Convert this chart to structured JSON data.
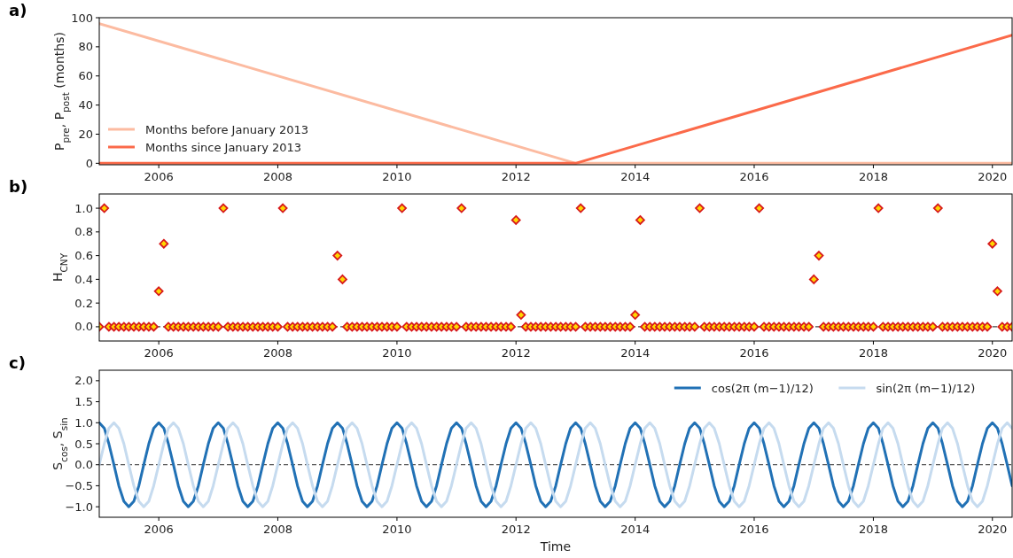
{
  "chart_data": [
    {
      "type": "line",
      "title": "a)",
      "ylabel": "P$_{pre}$, P$_{post}$ (months)",
      "xlim": [
        "2005-01",
        "2020-05"
      ],
      "xticks": [
        {
          "value": "2006-01",
          "label": "2006"
        },
        {
          "value": "2008-01",
          "label": "2008"
        },
        {
          "value": "2010-01",
          "label": "2010"
        },
        {
          "value": "2012-01",
          "label": "2012"
        },
        {
          "value": "2014-01",
          "label": "2014"
        },
        {
          "value": "2016-01",
          "label": "2016"
        },
        {
          "value": "2018-01",
          "label": "2018"
        },
        {
          "value": "2020-01",
          "label": "2020"
        }
      ],
      "ylim": [
        -1,
        100
      ],
      "yticks": [
        0,
        20,
        40,
        60,
        80,
        100
      ],
      "legend": "bottom left",
      "series": [
        {
          "name": "Months before January 2013",
          "color": "#fcbba1",
          "x": [
            "2005-01",
            "2013-01",
            "2020-05"
          ],
          "values": [
            96,
            0,
            0
          ]
        },
        {
          "name": "Months since January 2013",
          "color": "#fb6a4a",
          "x": [
            "2005-01",
            "2013-01",
            "2020-05"
          ],
          "values": [
            0,
            0,
            88
          ]
        }
      ]
    },
    {
      "type": "scatter",
      "title": "b)",
      "ylabel": "H$_{CNY}$",
      "marker": "diamond",
      "xlim": [
        "2005-01",
        "2020-05"
      ],
      "xticks": [
        {
          "value": "2006-01",
          "label": "2006"
        },
        {
          "value": "2008-01",
          "label": "2008"
        },
        {
          "value": "2010-01",
          "label": "2010"
        },
        {
          "value": "2012-01",
          "label": "2012"
        },
        {
          "value": "2014-01",
          "label": "2014"
        },
        {
          "value": "2016-01",
          "label": "2016"
        },
        {
          "value": "2018-01",
          "label": "2018"
        },
        {
          "value": "2020-01",
          "label": "2020"
        }
      ],
      "ylim": [
        -0.12,
        1.12
      ],
      "yticks": [
        {
          "value": 0,
          "label": "0.0"
        },
        {
          "value": 0.2,
          "label": "0.2"
        },
        {
          "value": 0.4,
          "label": "0.4"
        },
        {
          "value": 0.6,
          "label": "0.6"
        },
        {
          "value": 0.8,
          "label": "0.8"
        },
        {
          "value": 1,
          "label": "1.0"
        }
      ],
      "ref_lines": [
        {
          "axis": "y",
          "value": 0,
          "color": "#444444",
          "line_style": "dashed"
        }
      ],
      "series": [
        {
          "color": "#ffd700",
          "x": [
            "2005-01",
            "2005-02",
            "2005-03",
            "2005-04",
            "2005-05",
            "2005-06",
            "2005-07",
            "2005-08",
            "2005-09",
            "2005-10",
            "2005-11",
            "2005-12",
            "2006-01",
            "2006-02",
            "2006-03",
            "2006-04",
            "2006-05",
            "2006-06",
            "2006-07",
            "2006-08",
            "2006-09",
            "2006-10",
            "2006-11",
            "2006-12",
            "2007-01",
            "2007-02",
            "2007-03",
            "2007-04",
            "2007-05",
            "2007-06",
            "2007-07",
            "2007-08",
            "2007-09",
            "2007-10",
            "2007-11",
            "2007-12",
            "2008-01",
            "2008-02",
            "2008-03",
            "2008-04",
            "2008-05",
            "2008-06",
            "2008-07",
            "2008-08",
            "2008-09",
            "2008-10",
            "2008-11",
            "2008-12",
            "2009-01",
            "2009-02",
            "2009-03",
            "2009-04",
            "2009-05",
            "2009-06",
            "2009-07",
            "2009-08",
            "2009-09",
            "2009-10",
            "2009-11",
            "2009-12",
            "2010-01",
            "2010-02",
            "2010-03",
            "2010-04",
            "2010-05",
            "2010-06",
            "2010-07",
            "2010-08",
            "2010-09",
            "2010-10",
            "2010-11",
            "2010-12",
            "2011-01",
            "2011-02",
            "2011-03",
            "2011-04",
            "2011-05",
            "2011-06",
            "2011-07",
            "2011-08",
            "2011-09",
            "2011-10",
            "2011-11",
            "2011-12",
            "2012-01",
            "2012-02",
            "2012-03",
            "2012-04",
            "2012-05",
            "2012-06",
            "2012-07",
            "2012-08",
            "2012-09",
            "2012-10",
            "2012-11",
            "2012-12",
            "2013-01",
            "2013-02",
            "2013-03",
            "2013-04",
            "2013-05",
            "2013-06",
            "2013-07",
            "2013-08",
            "2013-09",
            "2013-10",
            "2013-11",
            "2013-12",
            "2014-01",
            "2014-02",
            "2014-03",
            "2014-04",
            "2014-05",
            "2014-06",
            "2014-07",
            "2014-08",
            "2014-09",
            "2014-10",
            "2014-11",
            "2014-12",
            "2015-01",
            "2015-02",
            "2015-03",
            "2015-04",
            "2015-05",
            "2015-06",
            "2015-07",
            "2015-08",
            "2015-09",
            "2015-10",
            "2015-11",
            "2015-12",
            "2016-01",
            "2016-02",
            "2016-03",
            "2016-04",
            "2016-05",
            "2016-06",
            "2016-07",
            "2016-08",
            "2016-09",
            "2016-10",
            "2016-11",
            "2016-12",
            "2017-01",
            "2017-02",
            "2017-03",
            "2017-04",
            "2017-05",
            "2017-06",
            "2017-07",
            "2017-08",
            "2017-09",
            "2017-10",
            "2017-11",
            "2017-12",
            "2018-01",
            "2018-02",
            "2018-03",
            "2018-04",
            "2018-05",
            "2018-06",
            "2018-07",
            "2018-08",
            "2018-09",
            "2018-10",
            "2018-11",
            "2018-12",
            "2019-01",
            "2019-02",
            "2019-03",
            "2019-04",
            "2019-05",
            "2019-06",
            "2019-07",
            "2019-08",
            "2019-09",
            "2019-10",
            "2019-11",
            "2019-12",
            "2020-01",
            "2020-02",
            "2020-03",
            "2020-04",
            "2020-05"
          ],
          "values": [
            0,
            1,
            0,
            0,
            0,
            0,
            0,
            0,
            0,
            0,
            0,
            0,
            0.3,
            0.7,
            0,
            0,
            0,
            0,
            0,
            0,
            0,
            0,
            0,
            0,
            0,
            1,
            0,
            0,
            0,
            0,
            0,
            0,
            0,
            0,
            0,
            0,
            0,
            1,
            0,
            0,
            0,
            0,
            0,
            0,
            0,
            0,
            0,
            0,
            0.6,
            0.4,
            0,
            0,
            0,
            0,
            0,
            0,
            0,
            0,
            0,
            0,
            0,
            1,
            0,
            0,
            0,
            0,
            0,
            0,
            0,
            0,
            0,
            0,
            0,
            1,
            0,
            0,
            0,
            0,
            0,
            0,
            0,
            0,
            0,
            0,
            0.9,
            0.1,
            0,
            0,
            0,
            0,
            0,
            0,
            0,
            0,
            0,
            0,
            0,
            1,
            0,
            0,
            0,
            0,
            0,
            0,
            0,
            0,
            0,
            0,
            0.1,
            0.9,
            0,
            0,
            0,
            0,
            0,
            0,
            0,
            0,
            0,
            0,
            0,
            1,
            0,
            0,
            0,
            0,
            0,
            0,
            0,
            0,
            0,
            0,
            0,
            1,
            0,
            0,
            0,
            0,
            0,
            0,
            0,
            0,
            0,
            0,
            0.4,
            0.6,
            0,
            0,
            0,
            0,
            0,
            0,
            0,
            0,
            0,
            0,
            0,
            1,
            0,
            0,
            0,
            0,
            0,
            0,
            0,
            0,
            0,
            0,
            0,
            1,
            0,
            0,
            0,
            0,
            0,
            0,
            0,
            0,
            0,
            0,
            0.7,
            0.3,
            0,
            0,
            0
          ]
        }
      ]
    },
    {
      "type": "line",
      "title": "c)",
      "xlabel": "Time",
      "ylabel": "S$_{cos}$, S$_{sin}$",
      "xlim": [
        "2005-01",
        "2020-05"
      ],
      "xticks": [
        {
          "value": "2006-01",
          "label": "2006"
        },
        {
          "value": "2008-01",
          "label": "2008"
        },
        {
          "value": "2010-01",
          "label": "2010"
        },
        {
          "value": "2012-01",
          "label": "2012"
        },
        {
          "value": "2014-01",
          "label": "2014"
        },
        {
          "value": "2016-01",
          "label": "2016"
        },
        {
          "value": "2018-01",
          "label": "2018"
        },
        {
          "value": "2020-01",
          "label": "2020"
        }
      ],
      "ylim": [
        -1.25,
        2.25
      ],
      "yticks": [
        {
          "value": -1,
          "label": "−1.0"
        },
        {
          "value": -0.5,
          "label": "−0.5"
        },
        {
          "value": 0,
          "label": "0.0"
        },
        {
          "value": 0.5,
          "label": "0.5"
        },
        {
          "value": 1,
          "label": "1.0"
        },
        {
          "value": 1.5,
          "label": "1.5"
        },
        {
          "value": 2,
          "label": "2.0"
        }
      ],
      "legend": "top right",
      "ref_lines": [
        {
          "axis": "y",
          "value": 0,
          "color": "#555555",
          "line_style": "dashed"
        }
      ],
      "series": [
        {
          "name": "cos(2π (m−1)/12)",
          "color": "#2171b5",
          "x": [
            "2005-01",
            "2005-02",
            "2005-03",
            "2005-04",
            "2005-05",
            "2005-06",
            "2005-07",
            "2005-08",
            "2005-09",
            "2005-10",
            "2005-11",
            "2005-12",
            "2006-01",
            "2006-02",
            "2006-03",
            "2006-04",
            "2006-05",
            "2006-06",
            "2006-07",
            "2006-08",
            "2006-09",
            "2006-10",
            "2006-11",
            "2006-12",
            "2007-01",
            "2007-02",
            "2007-03",
            "2007-04",
            "2007-05",
            "2007-06",
            "2007-07",
            "2007-08",
            "2007-09",
            "2007-10",
            "2007-11",
            "2007-12",
            "2008-01",
            "2008-02",
            "2008-03",
            "2008-04",
            "2008-05",
            "2008-06",
            "2008-07",
            "2008-08",
            "2008-09",
            "2008-10",
            "2008-11",
            "2008-12",
            "2009-01",
            "2009-02",
            "2009-03",
            "2009-04",
            "2009-05",
            "2009-06",
            "2009-07",
            "2009-08",
            "2009-09",
            "2009-10",
            "2009-11",
            "2009-12",
            "2010-01",
            "2010-02",
            "2010-03",
            "2010-04",
            "2010-05",
            "2010-06",
            "2010-07",
            "2010-08",
            "2010-09",
            "2010-10",
            "2010-11",
            "2010-12",
            "2011-01",
            "2011-02",
            "2011-03",
            "2011-04",
            "2011-05",
            "2011-06",
            "2011-07",
            "2011-08",
            "2011-09",
            "2011-10",
            "2011-11",
            "2011-12",
            "2012-01",
            "2012-02",
            "2012-03",
            "2012-04",
            "2012-05",
            "2012-06",
            "2012-07",
            "2012-08",
            "2012-09",
            "2012-10",
            "2012-11",
            "2012-12",
            "2013-01",
            "2013-02",
            "2013-03",
            "2013-04",
            "2013-05",
            "2013-06",
            "2013-07",
            "2013-08",
            "2013-09",
            "2013-10",
            "2013-11",
            "2013-12",
            "2014-01",
            "2014-02",
            "2014-03",
            "2014-04",
            "2014-05",
            "2014-06",
            "2014-07",
            "2014-08",
            "2014-09",
            "2014-10",
            "2014-11",
            "2014-12",
            "2015-01",
            "2015-02",
            "2015-03",
            "2015-04",
            "2015-05",
            "2015-06",
            "2015-07",
            "2015-08",
            "2015-09",
            "2015-10",
            "2015-11",
            "2015-12",
            "2016-01",
            "2016-02",
            "2016-03",
            "2016-04",
            "2016-05",
            "2016-06",
            "2016-07",
            "2016-08",
            "2016-09",
            "2016-10",
            "2016-11",
            "2016-12",
            "2017-01",
            "2017-02",
            "2017-03",
            "2017-04",
            "2017-05",
            "2017-06",
            "2017-07",
            "2017-08",
            "2017-09",
            "2017-10",
            "2017-11",
            "2017-12",
            "2018-01",
            "2018-02",
            "2018-03",
            "2018-04",
            "2018-05",
            "2018-06",
            "2018-07",
            "2018-08",
            "2018-09",
            "2018-10",
            "2018-11",
            "2018-12",
            "2019-01",
            "2019-02",
            "2019-03",
            "2019-04",
            "2019-05",
            "2019-06",
            "2019-07",
            "2019-08",
            "2019-09",
            "2019-10",
            "2019-11",
            "2019-12",
            "2020-01",
            "2020-02",
            "2020-03",
            "2020-04",
            "2020-05"
          ],
          "values": [
            1,
            0.87,
            0.5,
            0,
            -0.5,
            -0.87,
            -1,
            -0.87,
            -0.5,
            0,
            0.5,
            0.87,
            1,
            0.87,
            0.5,
            0,
            -0.5,
            -0.87,
            -1,
            -0.87,
            -0.5,
            0,
            0.5,
            0.87,
            1,
            0.87,
            0.5,
            0,
            -0.5,
            -0.87,
            -1,
            -0.87,
            -0.5,
            0,
            0.5,
            0.87,
            1,
            0.87,
            0.5,
            0,
            -0.5,
            -0.87,
            -1,
            -0.87,
            -0.5,
            0,
            0.5,
            0.87,
            1,
            0.87,
            0.5,
            0,
            -0.5,
            -0.87,
            -1,
            -0.87,
            -0.5,
            0,
            0.5,
            0.87,
            1,
            0.87,
            0.5,
            0,
            -0.5,
            -0.87,
            -1,
            -0.87,
            -0.5,
            0,
            0.5,
            0.87,
            1,
            0.87,
            0.5,
            0,
            -0.5,
            -0.87,
            -1,
            -0.87,
            -0.5,
            0,
            0.5,
            0.87,
            1,
            0.87,
            0.5,
            0,
            -0.5,
            -0.87,
            -1,
            -0.87,
            -0.5,
            0,
            0.5,
            0.87,
            1,
            0.87,
            0.5,
            0,
            -0.5,
            -0.87,
            -1,
            -0.87,
            -0.5,
            0,
            0.5,
            0.87,
            1,
            0.87,
            0.5,
            0,
            -0.5,
            -0.87,
            -1,
            -0.87,
            -0.5,
            0,
            0.5,
            0.87,
            1,
            0.87,
            0.5,
            0,
            -0.5,
            -0.87,
            -1,
            -0.87,
            -0.5,
            0,
            0.5,
            0.87,
            1,
            0.87,
            0.5,
            0,
            -0.5,
            -0.87,
            -1,
            -0.87,
            -0.5,
            0,
            0.5,
            0.87,
            1,
            0.87,
            0.5,
            0,
            -0.5,
            -0.87,
            -1,
            -0.87,
            -0.5,
            0,
            0.5,
            0.87,
            1,
            0.87,
            0.5,
            0,
            -0.5,
            -0.87,
            -1,
            -0.87,
            -0.5,
            0,
            0.5,
            0.87,
            1,
            0.87,
            0.5,
            0,
            -0.5,
            -0.87,
            -1,
            -0.87,
            -0.5,
            0,
            0.5,
            0.87,
            1,
            0.87,
            0.5,
            0,
            -0.5
          ]
        },
        {
          "name": "sin(2π (m−1)/12)",
          "color": "#c6dbef",
          "x": [
            "2005-01",
            "2005-02",
            "2005-03",
            "2005-04",
            "2005-05",
            "2005-06",
            "2005-07",
            "2005-08",
            "2005-09",
            "2005-10",
            "2005-11",
            "2005-12",
            "2006-01",
            "2006-02",
            "2006-03",
            "2006-04",
            "2006-05",
            "2006-06",
            "2006-07",
            "2006-08",
            "2006-09",
            "2006-10",
            "2006-11",
            "2006-12",
            "2007-01",
            "2007-02",
            "2007-03",
            "2007-04",
            "2007-05",
            "2007-06",
            "2007-07",
            "2007-08",
            "2007-09",
            "2007-10",
            "2007-11",
            "2007-12",
            "2008-01",
            "2008-02",
            "2008-03",
            "2008-04",
            "2008-05",
            "2008-06",
            "2008-07",
            "2008-08",
            "2008-09",
            "2008-10",
            "2008-11",
            "2008-12",
            "2009-01",
            "2009-02",
            "2009-03",
            "2009-04",
            "2009-05",
            "2009-06",
            "2009-07",
            "2009-08",
            "2009-09",
            "2009-10",
            "2009-11",
            "2009-12",
            "2010-01",
            "2010-02",
            "2010-03",
            "2010-04",
            "2010-05",
            "2010-06",
            "2010-07",
            "2010-08",
            "2010-09",
            "2010-10",
            "2010-11",
            "2010-12",
            "2011-01",
            "2011-02",
            "2011-03",
            "2011-04",
            "2011-05",
            "2011-06",
            "2011-07",
            "2011-08",
            "2011-09",
            "2011-10",
            "2011-11",
            "2011-12",
            "2012-01",
            "2012-02",
            "2012-03",
            "2012-04",
            "2012-05",
            "2012-06",
            "2012-07",
            "2012-08",
            "2012-09",
            "2012-10",
            "2012-11",
            "2012-12",
            "2013-01",
            "2013-02",
            "2013-03",
            "2013-04",
            "2013-05",
            "2013-06",
            "2013-07",
            "2013-08",
            "2013-09",
            "2013-10",
            "2013-11",
            "2013-12",
            "2014-01",
            "2014-02",
            "2014-03",
            "2014-04",
            "2014-05",
            "2014-06",
            "2014-07",
            "2014-08",
            "2014-09",
            "2014-10",
            "2014-11",
            "2014-12",
            "2015-01",
            "2015-02",
            "2015-03",
            "2015-04",
            "2015-05",
            "2015-06",
            "2015-07",
            "2015-08",
            "2015-09",
            "2015-10",
            "2015-11",
            "2015-12",
            "2016-01",
            "2016-02",
            "2016-03",
            "2016-04",
            "2016-05",
            "2016-06",
            "2016-07",
            "2016-08",
            "2016-09",
            "2016-10",
            "2016-11",
            "2016-12",
            "2017-01",
            "2017-02",
            "2017-03",
            "2017-04",
            "2017-05",
            "2017-06",
            "2017-07",
            "2017-08",
            "2017-09",
            "2017-10",
            "2017-11",
            "2017-12",
            "2018-01",
            "2018-02",
            "2018-03",
            "2018-04",
            "2018-05",
            "2018-06",
            "2018-07",
            "2018-08",
            "2018-09",
            "2018-10",
            "2018-11",
            "2018-12",
            "2019-01",
            "2019-02",
            "2019-03",
            "2019-04",
            "2019-05",
            "2019-06",
            "2019-07",
            "2019-08",
            "2019-09",
            "2019-10",
            "2019-11",
            "2019-12",
            "2020-01",
            "2020-02",
            "2020-03",
            "2020-04",
            "2020-05"
          ],
          "values": [
            0,
            0.5,
            0.87,
            1,
            0.87,
            0.5,
            0,
            -0.5,
            -0.87,
            -1,
            -0.87,
            -0.5,
            0,
            0.5,
            0.87,
            1,
            0.87,
            0.5,
            0,
            -0.5,
            -0.87,
            -1,
            -0.87,
            -0.5,
            0,
            0.5,
            0.87,
            1,
            0.87,
            0.5,
            0,
            -0.5,
            -0.87,
            -1,
            -0.87,
            -0.5,
            0,
            0.5,
            0.87,
            1,
            0.87,
            0.5,
            0,
            -0.5,
            -0.87,
            -1,
            -0.87,
            -0.5,
            0,
            0.5,
            0.87,
            1,
            0.87,
            0.5,
            0,
            -0.5,
            -0.87,
            -1,
            -0.87,
            -0.5,
            0,
            0.5,
            0.87,
            1,
            0.87,
            0.5,
            0,
            -0.5,
            -0.87,
            -1,
            -0.87,
            -0.5,
            0,
            0.5,
            0.87,
            1,
            0.87,
            0.5,
            0,
            -0.5,
            -0.87,
            -1,
            -0.87,
            -0.5,
            0,
            0.5,
            0.87,
            1,
            0.87,
            0.5,
            0,
            -0.5,
            -0.87,
            -1,
            -0.87,
            -0.5,
            0,
            0.5,
            0.87,
            1,
            0.87,
            0.5,
            0,
            -0.5,
            -0.87,
            -1,
            -0.87,
            -0.5,
            0,
            0.5,
            0.87,
            1,
            0.87,
            0.5,
            0,
            -0.5,
            -0.87,
            -1,
            -0.87,
            -0.5,
            0,
            0.5,
            0.87,
            1,
            0.87,
            0.5,
            0,
            -0.5,
            -0.87,
            -1,
            -0.87,
            -0.5,
            0,
            0.5,
            0.87,
            1,
            0.87,
            0.5,
            0,
            -0.5,
            -0.87,
            -1,
            -0.87,
            -0.5,
            0,
            0.5,
            0.87,
            1,
            0.87,
            0.5,
            0,
            -0.5,
            -0.87,
            -1,
            -0.87,
            -0.5,
            0,
            0.5,
            0.87,
            1,
            0.87,
            0.5,
            0,
            -0.5,
            -0.87,
            -1,
            -0.87,
            -0.5,
            0,
            0.5,
            0.87,
            1,
            0.87,
            0.5,
            0,
            -0.5,
            -0.87,
            -1,
            -0.87,
            -0.5,
            0,
            0.5,
            0.87,
            1,
            0.87
          ]
        }
      ]
    }
  ]
}
